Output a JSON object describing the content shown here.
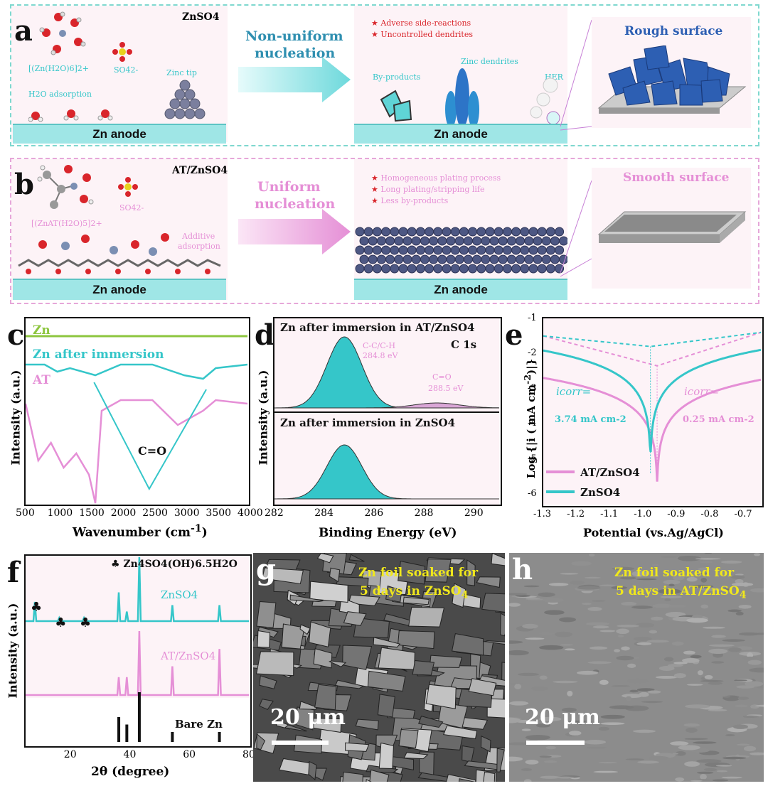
{
  "panels": {
    "a": "a",
    "b": "b",
    "c": "c",
    "d": "d",
    "e": "e",
    "f": "f",
    "g": "g",
    "h": "h"
  },
  "panel_a": {
    "electrolyte": "ZnSO4",
    "complex_label": "[(Zn(H2O)6]2+",
    "sulfate_label": "SO42-",
    "tip_label": "Zinc tip",
    "adsorption_label": "H2O adsorption",
    "anode_left": "Zn anode",
    "arrow_label_1": "Non-uniform",
    "arrow_label_2": "nucleation",
    "bullets": [
      "Adverse side-reactions",
      "Uncontrolled dendrites"
    ],
    "byproducts_label": "By-products",
    "dendrites_label": "Zinc dendrites",
    "her_label": "HER",
    "anode_right": "Zn anode",
    "surface_label": "Rough surface"
  },
  "panel_b": {
    "electrolyte": "AT/ZnSO4",
    "complex_label": "[(ZnAT(H2O)5]2+",
    "sulfate_label": "SO42-",
    "adsorption_label_1": "Additive",
    "adsorption_label_2": "adsorption",
    "anode_left": "Zn anode",
    "arrow_label_1": "Uniform",
    "arrow_label_2": "nucleation",
    "bullets": [
      "Homogeneous plating process",
      "Long plating/stripping life",
      "Less by-products"
    ],
    "anode_right": "Zn anode",
    "surface_label": "Smooth surface"
  },
  "panel_c": {
    "ylabel": "Intensity (a.u.)",
    "xlabel": "Wavenumber (cm-1)",
    "series_labels": [
      "Zn",
      "Zn after immersion",
      "AT"
    ],
    "annotation": "C=O",
    "xticks": [
      "500",
      "1000",
      "1500",
      "2000",
      "2500",
      "3000",
      "3500",
      "4000"
    ]
  },
  "panel_d": {
    "ylabel": "Intensity (a.u.)",
    "xlabel": "Binding Energy (eV)",
    "top_title": "Zn after immersion  in AT/ZnSO4",
    "top_tag": "C 1s",
    "peak1_label_1": "C-C/C-H",
    "peak1_label_2": "284.8 eV",
    "peak2_label_1": "C=O",
    "peak2_label_2": "288.5 eV",
    "bottom_title": "Zn after immersion  in ZnSO4",
    "xticks": [
      "282",
      "284",
      "286",
      "288",
      "290"
    ]
  },
  "panel_e": {
    "ylabel": "Log {|i ( mA cm-2)|}",
    "xlabel": "Potential (vs.Ag/AgCl)",
    "icorr_label": "icorr=",
    "icorr_znso4": "3.74 mA cm-2",
    "icorr_at": "0.25 mA cm-2",
    "legend": [
      "AT/ZnSO4",
      "ZnSO4"
    ],
    "xticks": [
      "-1.3",
      "-1.2",
      "-1.1",
      "-1.0",
      "-0.9",
      "-0.8",
      "-0.7"
    ],
    "yticks": [
      "-1",
      "-2",
      "-3",
      "-4",
      "-5",
      "-6"
    ]
  },
  "panel_f": {
    "ylabel": "Intensity (a.u.)",
    "xlabel": "2θ (degree)",
    "legend_phase": "Zn4SO4(OH)6.5H2O",
    "labels": [
      "ZnSO4",
      "AT/ZnSO4",
      "Bare Zn"
    ],
    "xticks": [
      "20",
      "40",
      "60",
      "80"
    ]
  },
  "panel_g": {
    "caption_1": "Zn foil soaked for",
    "caption_2": "5 days in ZnSO4",
    "scale": "20 μm"
  },
  "panel_h": {
    "caption_1": "Zn foil soaked for",
    "caption_2": "5 days in AT/ZnSO4",
    "scale": "20 μm"
  },
  "colors": {
    "cyan": "#35c6c9",
    "pink": "#e58fd6",
    "green": "#8dc63f",
    "red": "#d9252b",
    "blue": "#2d5fb3"
  },
  "chart_data": [
    {
      "type": "line",
      "title": "",
      "xlabel": "Wavenumber (cm-1)",
      "ylabel": "Intensity (a.u.)",
      "xlim": [
        500,
        4000
      ],
      "series": [
        {
          "name": "Zn",
          "x": [
            500,
            1000,
            2000,
            3000,
            4000
          ],
          "y": [
            4.5,
            4.5,
            4.5,
            4.5,
            4.5
          ]
        },
        {
          "name": "Zn after immersion",
          "x": [
            500,
            800,
            1000,
            1200,
            1600,
            2000,
            2500,
            3000,
            3300,
            3500,
            4000
          ],
          "y": [
            3.7,
            3.7,
            3.5,
            3.6,
            3.4,
            3.7,
            3.7,
            3.4,
            3.3,
            3.6,
            3.7
          ]
        },
        {
          "name": "AT",
          "x": [
            500,
            700,
            900,
            1100,
            1300,
            1500,
            1600,
            1700,
            2000,
            2500,
            2900,
            3300,
            3500,
            4000
          ],
          "y": [
            2.6,
            1.0,
            1.5,
            0.8,
            1.2,
            0.6,
            -0.2,
            2.4,
            2.7,
            2.7,
            2.0,
            2.4,
            2.7,
            2.6
          ]
        }
      ]
    },
    {
      "type": "area",
      "title": "C 1s",
      "xlabel": "Binding Energy (eV)",
      "ylabel": "Intensity (a.u.)",
      "xlim": [
        282,
        291
      ],
      "series": [
        {
          "name": "C-C/C-H",
          "center": 284.8,
          "width": 0.7,
          "amplitude": 1.0
        },
        {
          "name": "C=O",
          "center": 288.5,
          "width": 0.9,
          "amplitude": 0.07
        }
      ]
    },
    {
      "type": "line",
      "title": "",
      "xlabel": "Potential (vs.Ag/AgCl)",
      "ylabel": "Log {|i ( mA cm-2)|}",
      "xlim": [
        -1.3,
        -0.65
      ],
      "ylim": [
        -6.3,
        -1
      ],
      "series": [
        {
          "name": "AT/ZnSO4",
          "ecorr": -0.96,
          "min_log_i": -5.7
        },
        {
          "name": "ZnSO4",
          "ecorr": -0.98,
          "min_log_i": -5.0
        }
      ]
    },
    {
      "type": "bar",
      "title": "",
      "xlabel": "2θ (degree)",
      "ylabel": "Intensity (a.u.)",
      "xlim": [
        5,
        80
      ],
      "series": [
        {
          "name": "ZnSO4",
          "x": [
            8.1,
            16.3,
            24.6,
            36.3,
            39.0,
            43.2,
            54.3,
            70.1
          ],
          "y": [
            0.3,
            0.05,
            0.05,
            0.45,
            0.15,
            1.0,
            0.25,
            0.25
          ]
        },
        {
          "name": "AT/ZnSO4",
          "x": [
            36.3,
            39.0,
            43.2,
            54.3,
            70.1
          ],
          "y": [
            0.28,
            0.28,
            1.0,
            0.45,
            0.72
          ]
        },
        {
          "name": "Bare Zn",
          "x": [
            36.3,
            39.0,
            43.2,
            54.3,
            70.1
          ],
          "y": [
            0.5,
            0.35,
            1.0,
            0.2,
            0.2
          ]
        }
      ]
    }
  ]
}
